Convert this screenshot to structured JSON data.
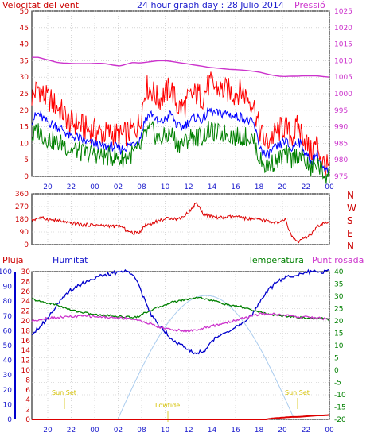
{
  "colors": {
    "bg": "#ffffff",
    "frame": "#000000",
    "grid": "#bdbdbd",
    "wind_gust": "#ff0000",
    "wind_avg": "#0000ff",
    "wind_low": "#008000",
    "pressure": "#cc33cc",
    "direction": "#dd0000",
    "humidity": "#0000cc",
    "temperature": "#008000",
    "dewpoint": "#cc33cc",
    "rain": "#dd0000",
    "sun": "#aaccee",
    "sun_label": "#d4c000",
    "label_red": "#cc0000",
    "label_blue": "#1a1acc",
    "label_magenta": "#cc33cc",
    "label_green": "#008000"
  },
  "header": {
    "left_label": "Velocitat del vent",
    "title": "24 hour graph day : 28 Julio 2014",
    "right_label": "Pressió"
  },
  "bottom_labels": {
    "rain": "Pluja",
    "humidity": "Humitat",
    "temperature": "Temperatura",
    "dewpoint": "Punt rosada"
  },
  "chart_data": [
    {
      "type": "line",
      "panel": "wind-pressure",
      "x_ticks": [
        "20",
        "22",
        "00",
        "02",
        "08",
        "10",
        "12",
        "14",
        "16",
        "18",
        "20",
        "22",
        "00"
      ],
      "left_axis": {
        "label": "Velocitat del vent",
        "ylim": [
          0,
          50
        ],
        "ticks": [
          0,
          5,
          10,
          15,
          20,
          25,
          30,
          35,
          40,
          45,
          50
        ]
      },
      "right_axis": {
        "label": "Pressió",
        "ylim": [
          975,
          1025
        ],
        "ticks": [
          975,
          980,
          985,
          990,
          995,
          1000,
          1005,
          1010,
          1015,
          1020,
          1025
        ]
      },
      "grid": true,
      "series": [
        {
          "key": "gust",
          "axis": "left",
          "values": [
            24,
            27,
            24,
            23,
            21,
            19,
            16,
            16,
            15,
            14,
            14,
            13,
            13,
            13,
            12,
            13,
            14,
            16,
            27,
            26,
            23,
            25,
            27,
            21,
            21,
            24,
            25,
            24,
            28,
            27,
            26,
            26,
            25,
            26,
            24,
            22,
            14,
            10,
            12,
            14,
            15,
            12,
            15,
            12,
            7,
            10,
            4,
            2
          ]
        },
        {
          "key": "avg",
          "axis": "left",
          "values": [
            17,
            19,
            17,
            16,
            15,
            14,
            12,
            12,
            11,
            10,
            10,
            9,
            9,
            9,
            8,
            9,
            10,
            11,
            18,
            19,
            16,
            17,
            19,
            15,
            15,
            17,
            18,
            17,
            20,
            19,
            19,
            19,
            18,
            18,
            17,
            16,
            9,
            6,
            8,
            9,
            11,
            8,
            11,
            8,
            4,
            7,
            2,
            1
          ]
        },
        {
          "key": "low",
          "axis": "left",
          "values": [
            12,
            14,
            12,
            11,
            10,
            10,
            8,
            8,
            7,
            7,
            7,
            6,
            6,
            6,
            5,
            6,
            7,
            8,
            13,
            14,
            11,
            12,
            13,
            10,
            10,
            12,
            12,
            12,
            14,
            13,
            13,
            13,
            12,
            12,
            12,
            11,
            5,
            3,
            4,
            5,
            7,
            5,
            7,
            5,
            2,
            4,
            1,
            0
          ]
        },
        {
          "key": "pressure",
          "axis": "right",
          "values": [
            1011,
            1011,
            1010.5,
            1010,
            1009.5,
            1009.3,
            1009.2,
            1009.1,
            1009.1,
            1009.1,
            1009.2,
            1009.2,
            1009,
            1008.6,
            1008.4,
            1009,
            1009.5,
            1009.3,
            1009.5,
            1009.8,
            1010,
            1010,
            1009.8,
            1009.5,
            1009.2,
            1008.9,
            1008.6,
            1008.3,
            1008,
            1007.8,
            1007.6,
            1007.4,
            1007.3,
            1007.2,
            1007,
            1006.8,
            1006.5,
            1006,
            1005.6,
            1005.3,
            1005.2,
            1005.3,
            1005.3,
            1005.4,
            1005.4,
            1005.4,
            1005.2,
            1005
          ]
        }
      ]
    },
    {
      "type": "line",
      "panel": "wind-direction",
      "x_ticks": [
        "20",
        "22",
        "00",
        "02",
        "08",
        "10",
        "12",
        "14",
        "16",
        "18",
        "20",
        "22",
        "00"
      ],
      "left_axis": {
        "ylim": [
          0,
          360
        ],
        "ticks": [
          0,
          90,
          180,
          270,
          360
        ]
      },
      "right_axis": {
        "labels": [
          "N",
          "W",
          "S",
          "E",
          "N"
        ]
      },
      "grid": true,
      "series": [
        {
          "key": "direction",
          "values": [
            170,
            190,
            185,
            175,
            170,
            160,
            150,
            150,
            140,
            140,
            140,
            135,
            135,
            130,
            130,
            100,
            80,
            90,
            140,
            150,
            170,
            180,
            190,
            180,
            200,
            240,
            300,
            220,
            200,
            195,
            190,
            195,
            200,
            190,
            185,
            180,
            175,
            170,
            160,
            150,
            180,
            60,
            20,
            40,
            70,
            120,
            150,
            150
          ]
        }
      ]
    },
    {
      "type": "line",
      "panel": "rain-humidity-temperature",
      "x_ticks": [
        "20",
        "22",
        "00",
        "02",
        "08",
        "10",
        "12",
        "14",
        "16",
        "18",
        "20",
        "22",
        "00"
      ],
      "rain_axis": {
        "label": "Pluja",
        "ylim": [
          0,
          30
        ],
        "ticks": [
          0,
          2,
          4,
          6,
          8,
          10,
          12,
          14,
          16,
          18,
          20,
          22,
          24,
          26,
          28,
          30
        ]
      },
      "humidity_axis": {
        "label": "Humitat",
        "ylim": [
          0,
          100
        ],
        "ticks": [
          0,
          10,
          20,
          30,
          40,
          50,
          60,
          70,
          80,
          90,
          100
        ]
      },
      "temperature_axis": {
        "label": "Temperatura",
        "ylim": [
          -20,
          40
        ],
        "ticks": [
          -20,
          -15,
          -10,
          -5,
          0,
          5,
          10,
          15,
          20,
          25,
          30,
          35,
          40
        ]
      },
      "grid": true,
      "annotations": [
        {
          "text": "Sun Set",
          "near": "20"
        },
        {
          "text": "Lowtide",
          "near": "10"
        },
        {
          "text": "Sun Set",
          "near": "22"
        }
      ],
      "series": [
        {
          "key": "humidity",
          "axis": "humidity",
          "values": [
            58,
            62,
            66,
            72,
            78,
            82,
            87,
            90,
            92,
            94,
            96,
            97,
            98,
            99,
            100,
            100,
            99,
            90,
            78,
            70,
            64,
            60,
            55,
            52,
            49,
            46,
            45,
            46,
            50,
            55,
            58,
            60,
            62,
            64,
            67,
            72,
            80,
            86,
            90,
            94,
            96,
            97,
            98,
            99,
            100,
            100,
            100,
            100
          ]
        },
        {
          "key": "temperature",
          "axis": "temperature",
          "values": [
            29,
            28,
            27.5,
            27,
            26.5,
            25.5,
            24.5,
            24,
            23.5,
            23,
            22.5,
            22.3,
            22.2,
            22,
            21.8,
            21.6,
            21.5,
            22,
            23.5,
            24.5,
            25.5,
            26.5,
            27.5,
            28,
            28.5,
            29,
            29.5,
            29.3,
            28.5,
            28,
            27.2,
            26.5,
            26,
            25.8,
            25,
            24.2,
            23.5,
            23,
            22.5,
            22.2,
            22,
            21.7,
            21.5,
            21.3,
            21.1,
            21,
            21,
            20.5
          ]
        },
        {
          "key": "dewpoint",
          "axis": "temperature",
          "values": [
            20,
            20.5,
            21,
            21.2,
            21.4,
            21.6,
            21.7,
            21.8,
            22,
            22,
            21.8,
            21.6,
            21.5,
            21.3,
            21.2,
            21.1,
            20.8,
            20,
            19.5,
            18.5,
            17.5,
            17,
            16.5,
            16.2,
            16,
            16,
            16.3,
            17,
            17.5,
            18.2,
            18.8,
            19.5,
            20,
            21,
            21.5,
            22,
            22.8,
            23,
            22.8,
            22.5,
            22.2,
            22,
            21.8,
            21.6,
            21.5,
            21.2,
            21,
            20.8
          ]
        },
        {
          "key": "rain",
          "axis": "rain",
          "values": [
            0,
            0,
            0,
            0,
            0,
            0,
            0,
            0,
            0,
            0,
            0,
            0,
            0,
            0,
            0,
            0,
            0,
            0,
            0,
            0,
            0,
            0,
            0,
            0,
            0,
            0,
            0,
            0,
            0,
            0,
            0,
            0,
            0,
            0,
            0,
            0,
            0,
            0,
            0.2,
            0.3,
            0.4,
            0.5,
            0.5,
            0.6,
            0.7,
            0.8,
            0.8,
            0.9
          ]
        }
      ]
    }
  ]
}
